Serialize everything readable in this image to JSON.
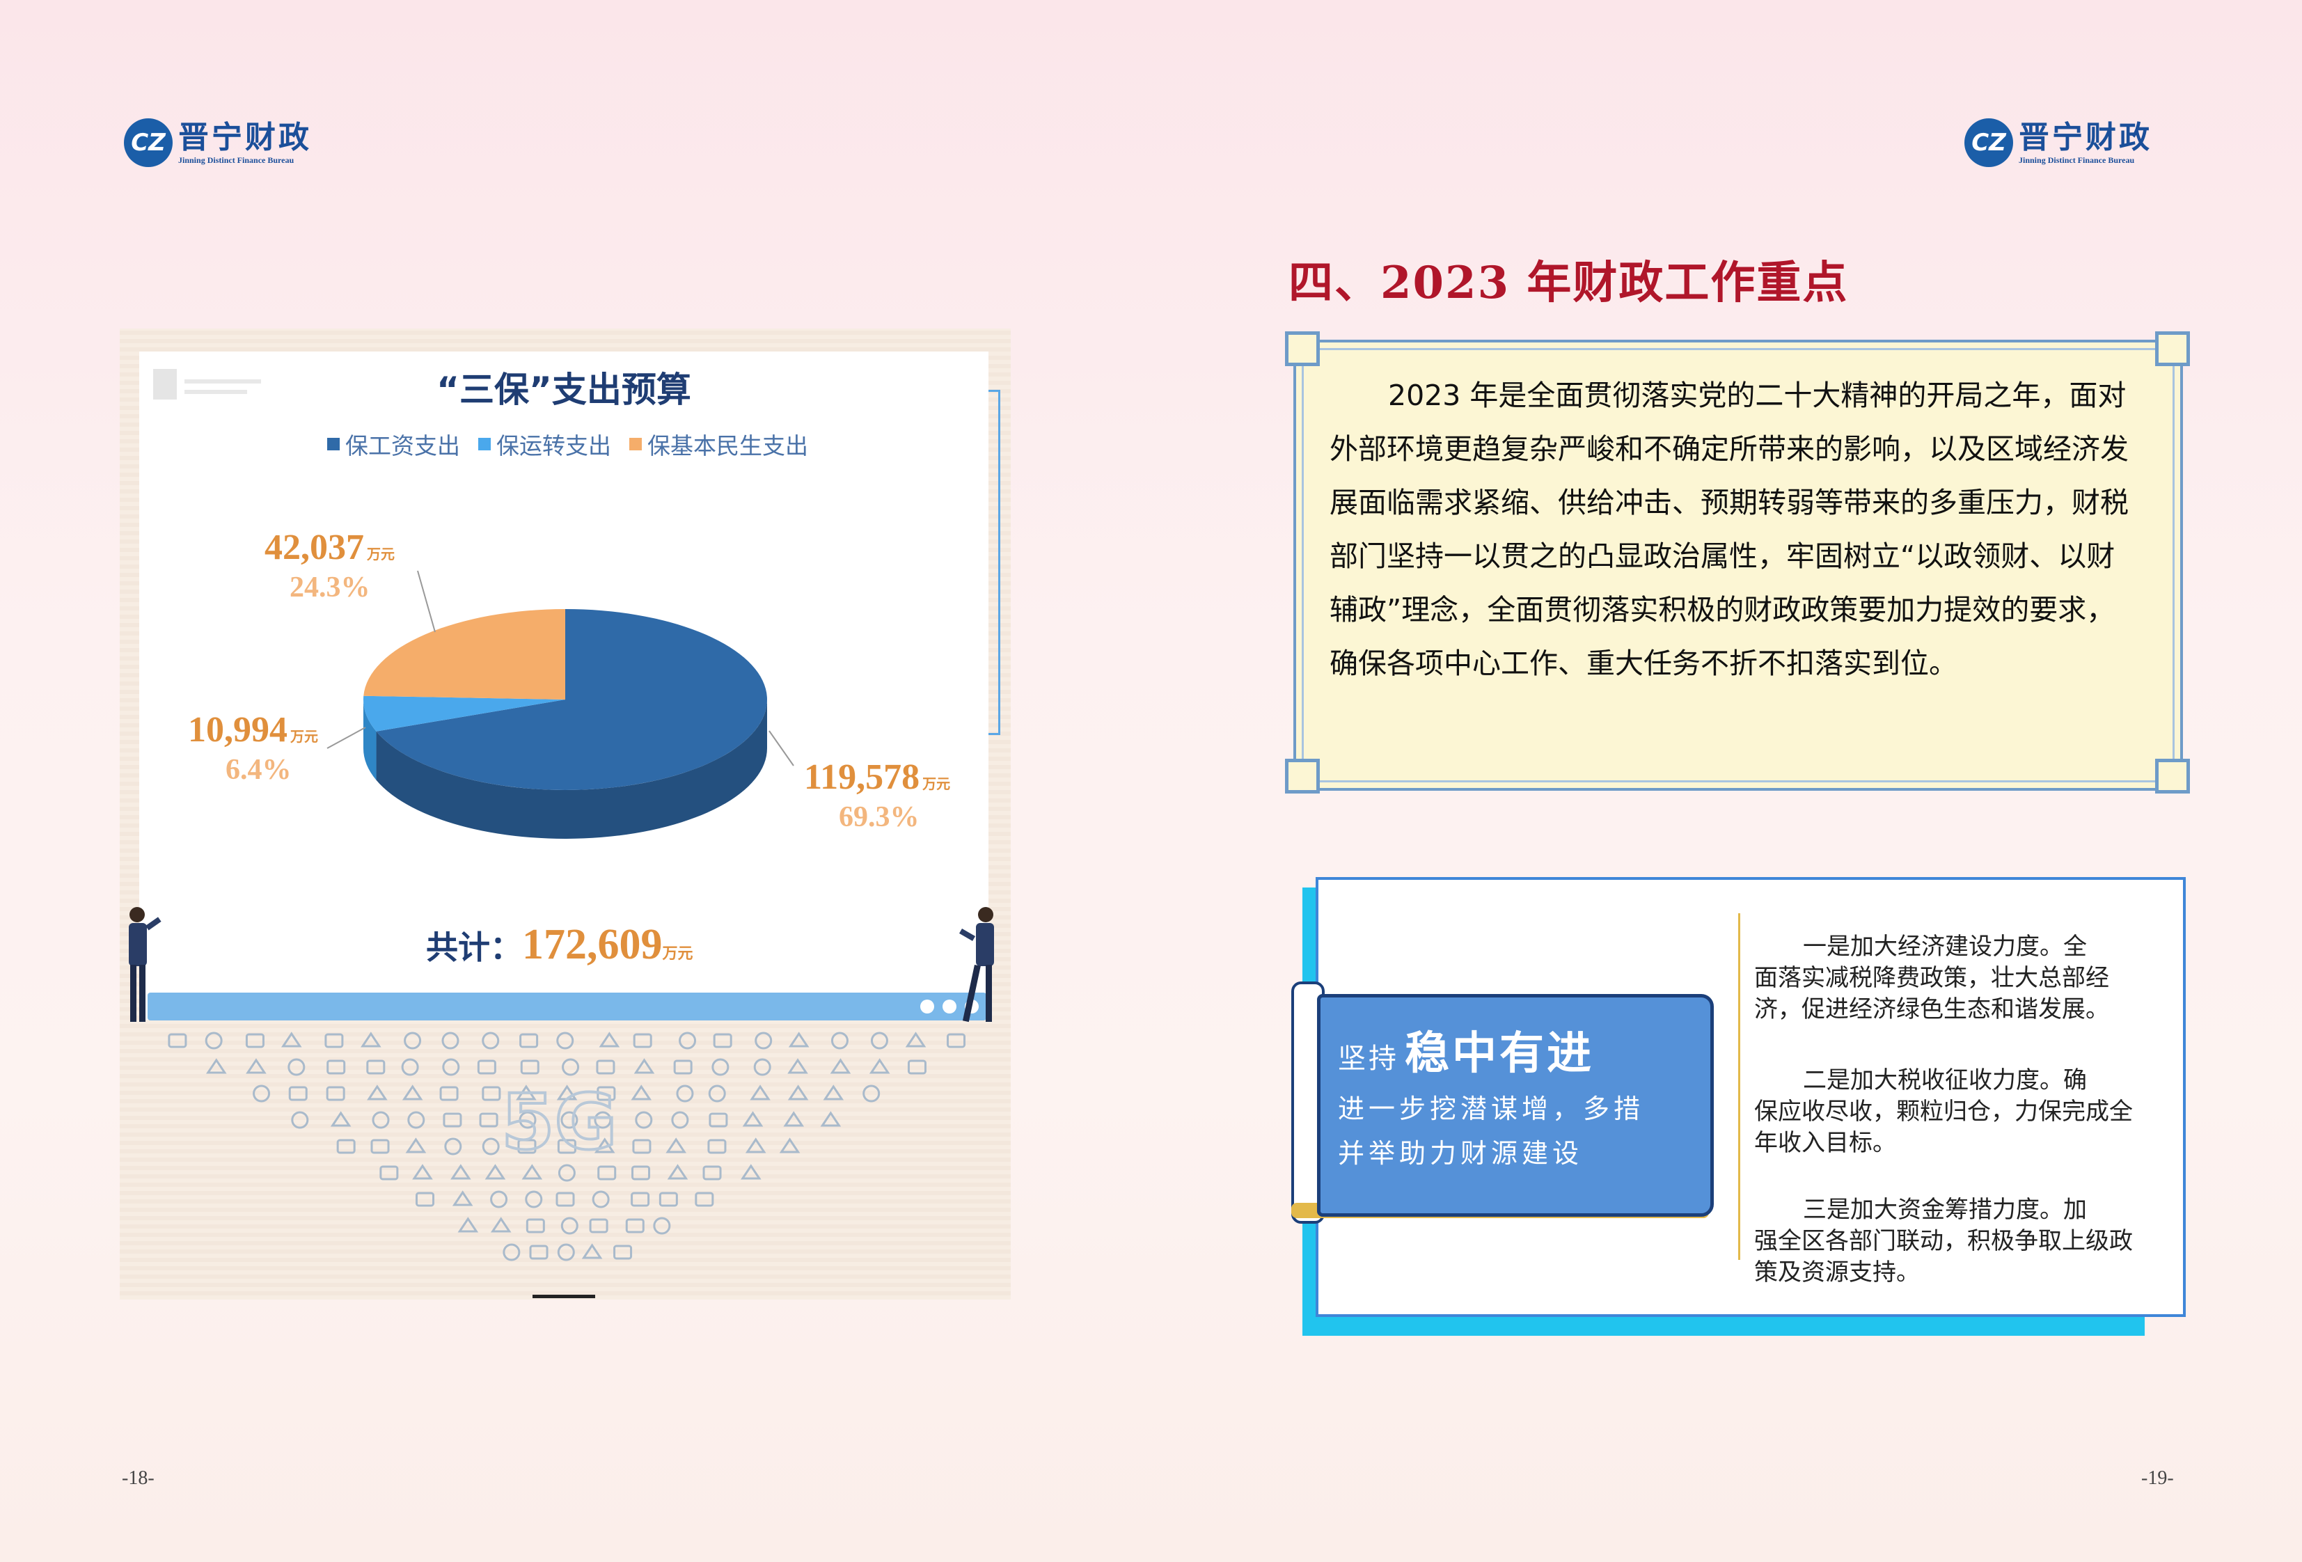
{
  "header": {
    "logo_cn": "晋宁财政",
    "logo_en": "Jinning Distinct Finance Bureau",
    "logo_mark": "CZ"
  },
  "pages": {
    "left": "-18-",
    "right": "-19-"
  },
  "chart": {
    "title": "“三保”支出预算",
    "total_label": "共计：",
    "total_value": "172,609",
    "unit": "万元",
    "colors": {
      "wage": "#2f6aa8",
      "ops": "#4aa8ec",
      "livelihood": "#f5ad6a"
    }
  },
  "chart_data": {
    "type": "pie",
    "title": "“三保”支出预算",
    "unit": "万元",
    "series": [
      {
        "name": "保工资支出",
        "value": 119578,
        "display": "119,578",
        "percent": "69.3%"
      },
      {
        "name": "保运转支出",
        "value": 10994,
        "display": "10,994",
        "percent": "6.4%"
      },
      {
        "name": "保基本民生支出",
        "value": 42037,
        "display": "42,037",
        "percent": "24.3%"
      }
    ],
    "total": 172609,
    "legend_position": "top"
  },
  "section": {
    "title": "四、2023 年财政工作重点",
    "intro": "2023 年是全面贯彻落实党的二十大精神的开局之年，面对外部环境更趋复杂严峻和不确定所带来的影响，以及区域经济发展面临需求紧缩、供给冲击、预期转弱等带来的多重压力，财税部门坚持一以贯之的凸显政治属性，牢固树立“以政领财、以财辅政”理念，全面贯彻落实积极的财政政策要加力提效的要求，确保各项中心工作、重大任务不折不扣落实到位。"
  },
  "focus": {
    "prefix": "坚持",
    "headline": "稳中有进",
    "line1": "进一步挖潜谋增，多措",
    "line2": "并举助力财源建设",
    "points": [
      {
        "lead": "一是加大经济建设力度。全",
        "rest": "面落实减税降费政策，壮大总部经济，促进经济绿色生态和谐发展。"
      },
      {
        "lead": "二是加大税收征收力度。确",
        "rest": "保应收尽收，颗粒归仓，力保完成全年收入目标。"
      },
      {
        "lead": "三是加大资金筹措力度。加",
        "rest": "强全区各部门联动，积极争取上级政策及资源支持。"
      }
    ]
  }
}
